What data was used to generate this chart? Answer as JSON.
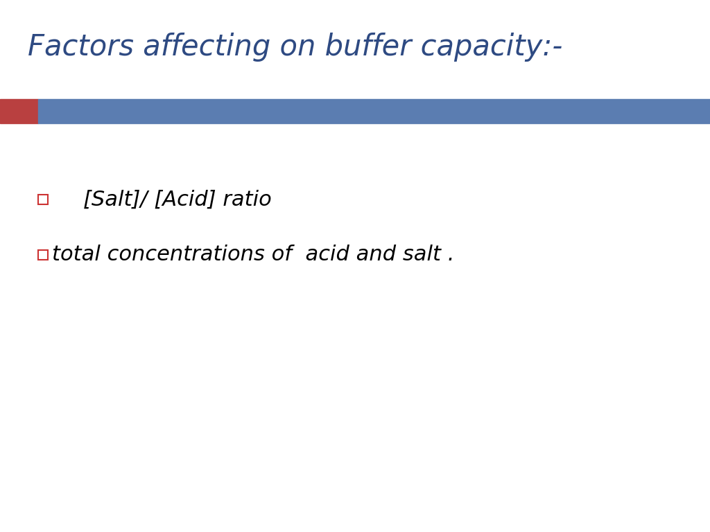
{
  "title": "Factors affecting on buffer capacity:-",
  "title_color": "#2E4A82",
  "title_fontsize": 30,
  "title_style": "italic",
  "background_color": "#FFFFFF",
  "bar_red_color": "#B94040",
  "bar_blue_color": "#5B7DB1",
  "bullet_color": "#CC3333",
  "text1": "[Salt]/ [Acid] ratio",
  "text2": "total concentrations of  acid and salt .",
  "text_fontsize": 22,
  "text_style": "italic",
  "text_weight": "normal",
  "text_color": "#000000"
}
